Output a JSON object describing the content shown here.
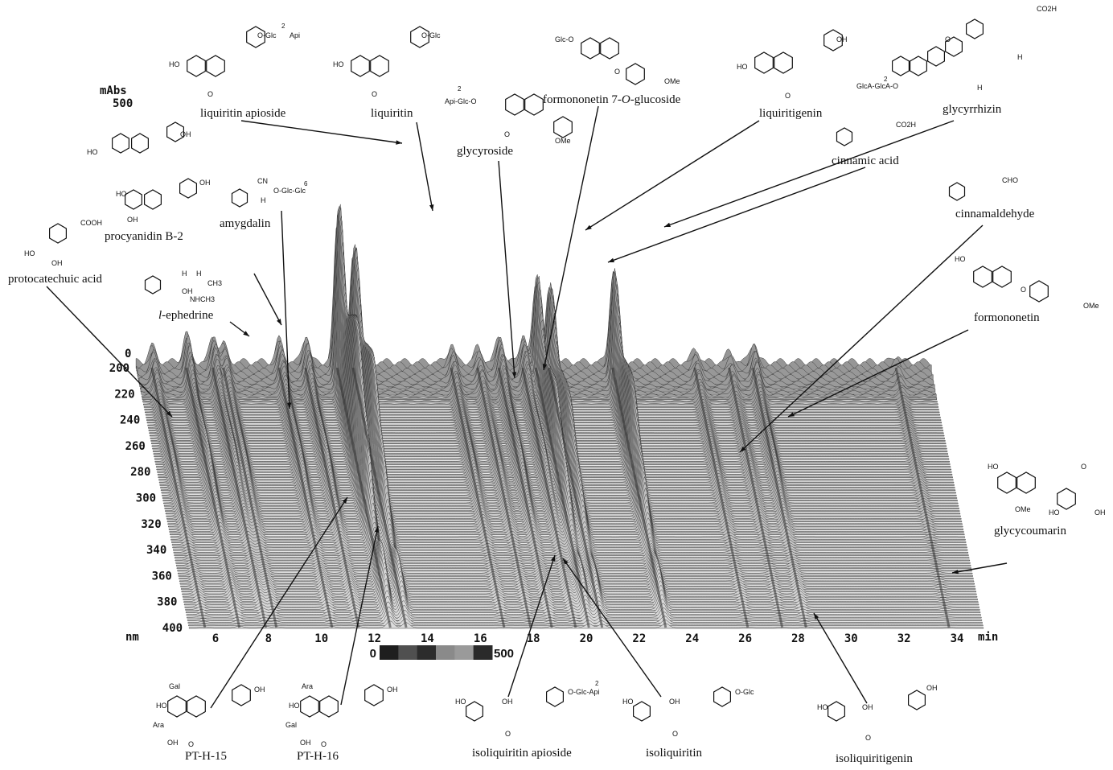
{
  "chart_data": {
    "type": "area",
    "x_unit": "min",
    "y_unit": "nm",
    "z_unit": "mAbs",
    "z_max_label": "500",
    "xlim": [
      5,
      35
    ],
    "ylim": [
      200,
      400
    ],
    "zlim": [
      0,
      500
    ],
    "x_ticks": [
      6,
      8,
      10,
      12,
      14,
      16,
      18,
      20,
      22,
      24,
      26,
      28,
      30,
      32,
      34
    ],
    "y_ticks": [
      200,
      220,
      240,
      260,
      280,
      300,
      320,
      340,
      360,
      380,
      400
    ],
    "z_tick": "0",
    "colorbar": {
      "min": "0",
      "max": "500"
    },
    "peaks": [
      {
        "name": "protocatechuic acid",
        "rt": 5.6,
        "height": 40
      },
      {
        "name": "l-ephedrine",
        "rt": 6.9,
        "height": 70
      },
      {
        "name": "procyanidin B-2",
        "rt": 7.9,
        "height": 60
      },
      {
        "name": "amygdalin",
        "rt": 8.3,
        "height": 45
      },
      {
        "name": "PT-H-15",
        "rt": 10.4,
        "height": 55
      },
      {
        "name": "PT-H-16",
        "rt": 11.4,
        "height": 60
      },
      {
        "name": "liquiritin apioside",
        "rt": 12.6,
        "height": 330
      },
      {
        "name": "liquiritin",
        "rt": 13.2,
        "height": 250
      },
      {
        "name": "glycyroside",
        "rt": 16.9,
        "height": 40
      },
      {
        "name": "formononetin 7-O-glucoside",
        "rt": 17.9,
        "height": 35
      },
      {
        "name": "isoliquiritin apioside",
        "rt": 18.7,
        "height": 60
      },
      {
        "name": "isoliquiritin",
        "rt": 19.6,
        "height": 60
      },
      {
        "name": "liquiritigenin",
        "rt": 20.1,
        "height": 190
      },
      {
        "name": "cinnamic acid",
        "rt": 20.6,
        "height": 170
      },
      {
        "name": "glycyrrhizin",
        "rt": 23.0,
        "height": 200
      },
      {
        "name": "cinnamaldehyde",
        "rt": 26.1,
        "height": 30
      },
      {
        "name": "formononetin",
        "rt": 27.4,
        "height": 25
      },
      {
        "name": "isoliquiritigenin",
        "rt": 28.3,
        "height": 45
      },
      {
        "name": "glycycoumarin",
        "rt": 33.7,
        "height": 15
      }
    ]
  },
  "labels": {
    "mabs": "mAbs",
    "mabs_value": "500",
    "nm": "nm",
    "min": "min",
    "liquiritin_apioside": "liquiritin apioside",
    "liquiritin": "liquiritin",
    "glycyroside": "glycyroside",
    "formononetin_glc_a": "formononetin 7-",
    "formononetin_glc_b": "O",
    "formononetin_glc_c": "-glucoside",
    "liquiritigenin": "liquiritigenin",
    "glycyrrhizin": "glycyrrhizin",
    "cinnamic_acid": "cinnamic acid",
    "cinnamaldehyde": "cinnamaldehyde",
    "formononetin": "formononetin",
    "glycycoumarin": "glycycoumarin",
    "procyanidin_b2": "procyanidin B-2",
    "amygdalin": "amygdalin",
    "protocatechuic_acid": "protocatechuic acid",
    "ephedrine_l": "l",
    "ephedrine_rest": "-ephedrine",
    "pt_h_15": "PT-H-15",
    "pt_h_16": "PT-H-16",
    "isoliquiritin_apioside": "isoliquiritin apioside",
    "isoliquiritin": "isoliquiritin",
    "isoliquiritigenin": "isoliquiritigenin"
  },
  "structures": {
    "liquiritin_apioside": {
      "top": "HO",
      "glyco": "O-Glc",
      "sugar_link": "2",
      "sugar": "Api",
      "ketone": "O"
    },
    "liquiritin": {
      "top": "HO",
      "glyco": "O-Glc",
      "ketone": "O"
    },
    "glycyroside": {
      "glyco": "Api-Glc-O",
      "sugar_link": "2",
      "ketone": "O",
      "ome": "OMe"
    },
    "formononetin_glc": {
      "glyco": "Glc-O",
      "ketone": "O",
      "ome": "OMe"
    },
    "liquiritigenin": {
      "top": "HO",
      "oh": "OH",
      "ketone": "O"
    },
    "glycyrrhizin": {
      "acid": "CO2H",
      "ketone": "O",
      "glyco": "GlcA-GlcA-O",
      "sugar_link": "2",
      "h1": "H",
      "h2": "H"
    },
    "cinnamic_acid": {
      "group": "CO2H"
    },
    "cinnamaldehyde": {
      "group": "CHO"
    },
    "formononetin": {
      "top": "HO",
      "ketone": "O",
      "ome": "OMe"
    },
    "glycycoumarin": {
      "oh1": "HO",
      "ome": "OMe",
      "oh2": "HO",
      "oh3": "OH",
      "ketone": "O"
    },
    "procyanidin_b2": {
      "oh": "OH",
      "ho": "HO"
    },
    "amygdalin": {
      "cn": "CN",
      "h": "H",
      "glyco": "O-Glc-Glc",
      "sugar_link": "6"
    },
    "protocatechuic_acid": {
      "acid": "COOH",
      "ho": "HO",
      "oh": "OH"
    },
    "ephedrine": {
      "h1": "H",
      "h2": "H",
      "oh": "OH",
      "nh": "NHCH3",
      "ch3": "CH3"
    },
    "pt_h_15": {
      "s1": "Gal",
      "s2": "Ara",
      "ho1": "HO",
      "oh": "OH",
      "ho2": "OH",
      "ketone": "O"
    },
    "pt_h_16": {
      "s1": "Ara",
      "s2": "Gal",
      "ho1": "HO",
      "oh": "OH",
      "ho2": "OH",
      "ketone": "O"
    },
    "isoliquiritin_apioside": {
      "ho": "HO",
      "oh": "OH",
      "glyco": "O-Glc-Api",
      "sugar_link": "2",
      "ketone": "O"
    },
    "isoliquiritin": {
      "ho": "HO",
      "oh": "OH",
      "glyco": "O-Glc",
      "ketone": "O"
    },
    "isoliquiritigenin": {
      "ho": "HO",
      "oh": "OH",
      "oh2": "OH",
      "ketone": "O"
    }
  }
}
